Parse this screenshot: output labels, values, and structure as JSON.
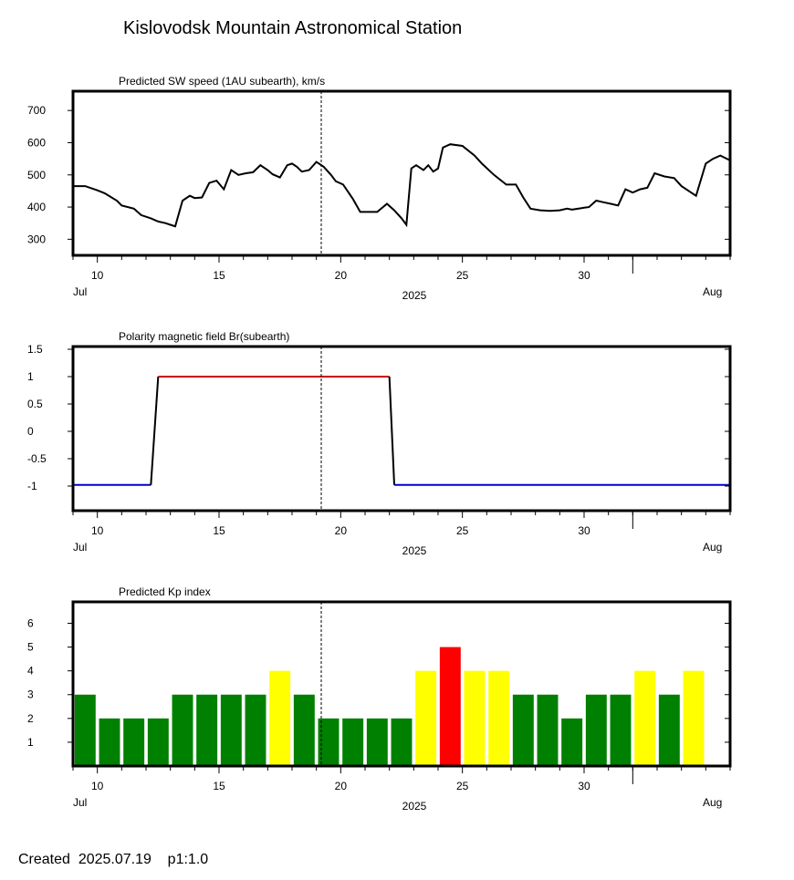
{
  "page": {
    "title": "Kislovodsk Mountain Astronomical Station",
    "footer": "Created  2025.07.19    p1:1.0"
  },
  "chart_data": [
    {
      "type": "line",
      "title": "Predicted SW speed (1AU subearth), km/s",
      "x_axis": {
        "start_day": 9,
        "end_day": 36,
        "tick_labels": [
          "10",
          "15",
          "20",
          "25",
          "30"
        ],
        "tick_days": [
          10,
          15,
          20,
          25,
          30
        ],
        "month_labels": [
          "Jul",
          "Aug"
        ],
        "year_label": "2025"
      },
      "ylim": [
        250,
        760
      ],
      "y_ticks": [
        300,
        400,
        500,
        600,
        700
      ],
      "y_tick_labels": [
        "300",
        "400",
        "500",
        "600",
        "700"
      ],
      "now_day": 19.2,
      "series": [
        {
          "color": "#000000",
          "x": [
            9.0,
            9.5,
            10.0,
            10.3,
            10.8,
            11.0,
            11.5,
            11.8,
            12.2,
            12.5,
            12.8,
            13.0,
            13.2,
            13.5,
            13.8,
            14.0,
            14.3,
            14.6,
            14.9,
            15.2,
            15.5,
            15.8,
            16.1,
            16.4,
            16.7,
            17.0,
            17.2,
            17.5,
            17.8,
            18.0,
            18.2,
            18.4,
            18.7,
            19.0,
            19.3,
            19.6,
            19.8,
            20.1,
            20.5,
            20.8,
            21.1,
            21.5,
            21.9,
            22.2,
            22.5,
            22.7,
            22.9,
            23.1,
            23.4,
            23.6,
            23.8,
            24.0,
            24.2,
            24.5,
            25.0,
            25.5,
            25.8,
            26.3,
            26.8,
            27.2,
            27.5,
            27.8,
            28.2,
            28.6,
            29.0,
            29.3,
            29.5,
            30.0,
            30.2,
            30.5,
            30.8,
            31.1,
            31.4,
            31.7,
            32.0,
            32.3,
            32.6,
            32.9,
            33.3,
            33.7,
            34.0,
            34.3,
            34.6,
            35.0,
            35.3,
            35.6,
            36.0
          ],
          "y": [
            465,
            465,
            452,
            443,
            420,
            405,
            395,
            375,
            365,
            355,
            350,
            345,
            340,
            420,
            435,
            428,
            430,
            475,
            482,
            455,
            515,
            500,
            505,
            508,
            530,
            515,
            502,
            492,
            530,
            535,
            525,
            510,
            515,
            540,
            525,
            500,
            480,
            470,
            425,
            385,
            385,
            385,
            410,
            390,
            365,
            345,
            520,
            530,
            515,
            530,
            510,
            520,
            585,
            595,
            590,
            560,
            535,
            500,
            470,
            470,
            430,
            395,
            390,
            388,
            390,
            395,
            392,
            398,
            400,
            420,
            415,
            410,
            405,
            455,
            445,
            455,
            460,
            505,
            495,
            490,
            465,
            450,
            435,
            535,
            550,
            560,
            545
          ]
        }
      ]
    },
    {
      "type": "line",
      "title": "Polarity magnetic field  Br(subearth)",
      "x_axis": {
        "start_day": 9,
        "end_day": 36,
        "tick_labels": [
          "10",
          "15",
          "20",
          "25",
          "30"
        ],
        "tick_days": [
          10,
          15,
          20,
          25,
          30
        ],
        "month_labels": [
          "Jul",
          "Aug"
        ],
        "year_label": "2025"
      },
      "ylim": [
        -1.45,
        1.55
      ],
      "y_ticks": [
        1.5,
        1,
        0.5,
        0,
        -0.5,
        -1
      ],
      "y_tick_labels": [
        "1.5",
        "1",
        "0.5",
        "0",
        "-0.5",
        "-1"
      ],
      "now_day": 19.2,
      "series": [
        {
          "color_positive": "#cc0000",
          "color_negative": "#0000cc",
          "color_transition": "#000000",
          "x": [
            9.0,
            12.2,
            12.5,
            22.0,
            22.2,
            36.0
          ],
          "y": [
            -0.98,
            -0.98,
            1.0,
            1.0,
            -0.98,
            -0.98
          ]
        }
      ]
    },
    {
      "type": "bar",
      "title": "Predicted Kp index",
      "x_axis": {
        "start_day": 9,
        "end_day": 36,
        "tick_labels": [
          "10",
          "15",
          "20",
          "25",
          "30"
        ],
        "tick_days": [
          10,
          15,
          20,
          25,
          30
        ],
        "month_labels": [
          "Jul",
          "Aug"
        ],
        "year_label": "2025"
      },
      "ylim": [
        0,
        6.9
      ],
      "y_ticks": [
        1,
        2,
        3,
        4,
        5,
        6
      ],
      "y_tick_labels": [
        "1",
        "2",
        "3",
        "4",
        "5",
        "6"
      ],
      "now_day": 19.2,
      "bar_colors": {
        "2": "#008000",
        "3": "#008000",
        "4": "#ffff00",
        "5": "#ff0000"
      },
      "bars": [
        {
          "day": 9.5,
          "value": 3
        },
        {
          "day": 10.5,
          "value": 2
        },
        {
          "day": 11.5,
          "value": 2
        },
        {
          "day": 12.5,
          "value": 2
        },
        {
          "day": 13.5,
          "value": 3
        },
        {
          "day": 14.5,
          "value": 3
        },
        {
          "day": 15.5,
          "value": 3
        },
        {
          "day": 16.5,
          "value": 3
        },
        {
          "day": 17.5,
          "value": 4
        },
        {
          "day": 18.5,
          "value": 3
        },
        {
          "day": 19.5,
          "value": 2
        },
        {
          "day": 20.5,
          "value": 2
        },
        {
          "day": 21.5,
          "value": 2
        },
        {
          "day": 22.5,
          "value": 2
        },
        {
          "day": 23.5,
          "value": 4
        },
        {
          "day": 24.5,
          "value": 5
        },
        {
          "day": 25.5,
          "value": 4
        },
        {
          "day": 26.5,
          "value": 4
        },
        {
          "day": 27.5,
          "value": 3
        },
        {
          "day": 28.5,
          "value": 3
        },
        {
          "day": 29.5,
          "value": 2
        },
        {
          "day": 30.5,
          "value": 3
        },
        {
          "day": 31.5,
          "value": 3
        },
        {
          "day": 32.5,
          "value": 4
        },
        {
          "day": 33.5,
          "value": 3
        },
        {
          "day": 34.5,
          "value": 4
        }
      ]
    }
  ]
}
